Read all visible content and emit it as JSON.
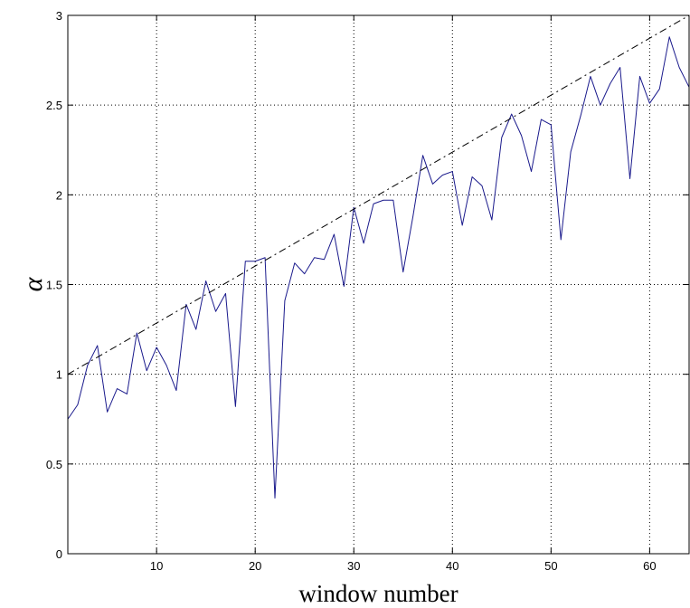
{
  "chart_data": {
    "type": "line",
    "title": "",
    "xlabel": "window number",
    "ylabel": "α",
    "xlim": [
      1,
      64
    ],
    "ylim": [
      0,
      3
    ],
    "grid": true,
    "x_ticks": [
      "10",
      "20",
      "30",
      "40",
      "50",
      "60"
    ],
    "y_ticks": [
      "0",
      "0.5",
      "1",
      "1.5",
      "2",
      "2.5",
      "3"
    ],
    "x_tick_values": [
      10,
      20,
      30,
      40,
      50,
      60
    ],
    "y_tick_values": [
      0,
      0.5,
      1,
      1.5,
      2,
      2.5,
      3
    ],
    "series": [
      {
        "style": "solid",
        "color": "#1a1a8c",
        "x": [
          1,
          2,
          3,
          4,
          5,
          6,
          7,
          8,
          9,
          10,
          11,
          12,
          13,
          14,
          15,
          16,
          17,
          18,
          19,
          20,
          21,
          22,
          23,
          24,
          25,
          26,
          27,
          28,
          29,
          30,
          31,
          32,
          33,
          34,
          35,
          36,
          37,
          38,
          39,
          40,
          41,
          42,
          43,
          44,
          45,
          46,
          47,
          48,
          49,
          50,
          51,
          52,
          53,
          54,
          55,
          56,
          57,
          58,
          59,
          60,
          61,
          62,
          63,
          64
        ],
        "y": [
          0.75,
          0.83,
          1.05,
          1.16,
          0.79,
          0.92,
          0.89,
          1.23,
          1.02,
          1.15,
          1.05,
          0.91,
          1.39,
          1.25,
          1.52,
          1.35,
          1.45,
          0.82,
          1.63,
          1.63,
          1.65,
          0.31,
          1.41,
          1.62,
          1.56,
          1.65,
          1.64,
          1.78,
          1.49,
          1.93,
          1.73,
          1.95,
          1.97,
          1.97,
          1.57,
          1.88,
          2.22,
          2.06,
          2.11,
          2.13,
          1.83,
          2.1,
          2.05,
          1.86,
          2.32,
          2.45,
          2.33,
          2.13,
          2.42,
          2.39,
          1.75,
          2.24,
          2.44,
          2.66,
          2.5,
          2.62,
          2.71,
          2.09,
          2.66,
          2.51,
          2.59,
          2.88,
          2.71,
          2.6
        ]
      },
      {
        "style": "dash-dot",
        "color": "#000000",
        "x": [
          1,
          64
        ],
        "y": [
          1.0,
          3.0
        ]
      }
    ]
  }
}
